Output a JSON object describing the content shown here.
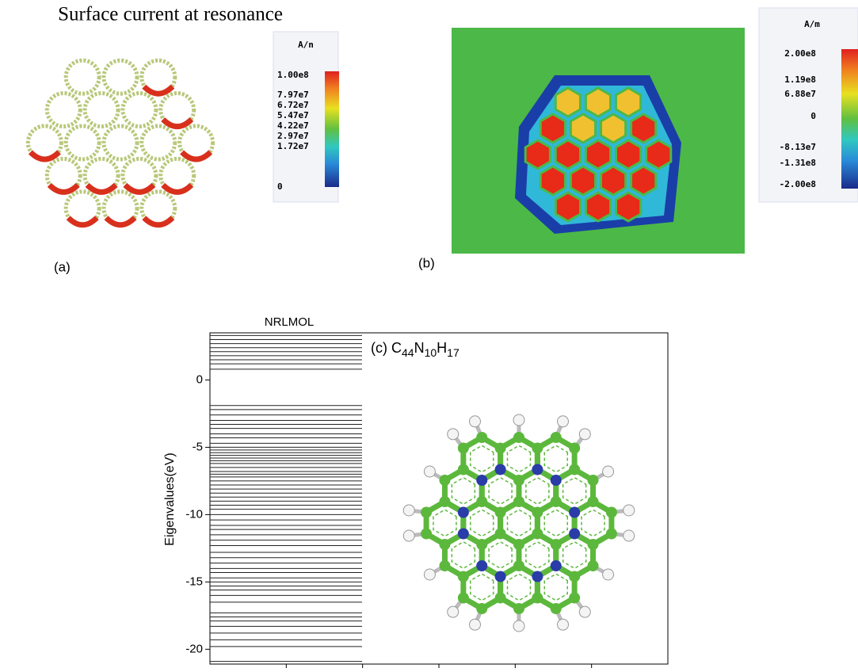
{
  "panel_a": {
    "title": "Surface current at resonance",
    "unit": "A/n",
    "colorbar_labels": [
      "1.00e8",
      "7.97e7",
      "6.72e7",
      "5.47e7",
      "4.22e7",
      "2.97e7",
      "1.72e7",
      "0"
    ],
    "label": "(a)"
  },
  "panel_b": {
    "unit": "A/m",
    "colorbar_labels": [
      "2.00e8",
      "1.19e8",
      "6.88e7",
      "0",
      "-8.13e7",
      "-1.31e8",
      "-2.00e8"
    ],
    "label": "(b)"
  },
  "chart_data": {
    "type": "levels",
    "title": "NRLMOL",
    "y_label": "Eigenvalues(eV)",
    "annotation": {
      "prefix": "(c) ",
      "formula": [
        {
          "element": "C",
          "count": "44"
        },
        {
          "element": "N",
          "count": "10"
        },
        {
          "element": "H",
          "count": "17"
        }
      ]
    },
    "values": [
      3.3,
      3.0,
      2.7,
      2.4,
      2.1,
      1.8,
      1.5,
      1.2,
      0.8,
      -1.9,
      -2.2,
      -2.6,
      -3.0,
      -3.3,
      -3.6,
      -4.0,
      -4.3,
      -4.7,
      -5.0,
      -5.2,
      -5.4,
      -5.6,
      -5.8,
      -6.0,
      -6.2,
      -6.5,
      -6.8,
      -7.0,
      -7.2,
      -7.5,
      -7.8,
      -8.1,
      -8.4,
      -8.7,
      -9.0,
      -9.3,
      -9.6,
      -10.0,
      -10.4,
      -10.8,
      -11.1,
      -11.5,
      -11.9,
      -12.3,
      -12.8,
      -13.2,
      -13.6,
      -14.0,
      -14.3,
      -14.7,
      -15.0,
      -15.3,
      -15.6,
      -16.0,
      -16.5,
      -17.3,
      -17.6,
      -17.9,
      -18.3,
      -18.8,
      -19.3,
      -19.8,
      -20.9
    ],
    "color": "#222222",
    "ylim": [
      -21.1,
      3.5
    ],
    "yticks": [
      0,
      -5,
      -10,
      -15,
      -20
    ]
  }
}
